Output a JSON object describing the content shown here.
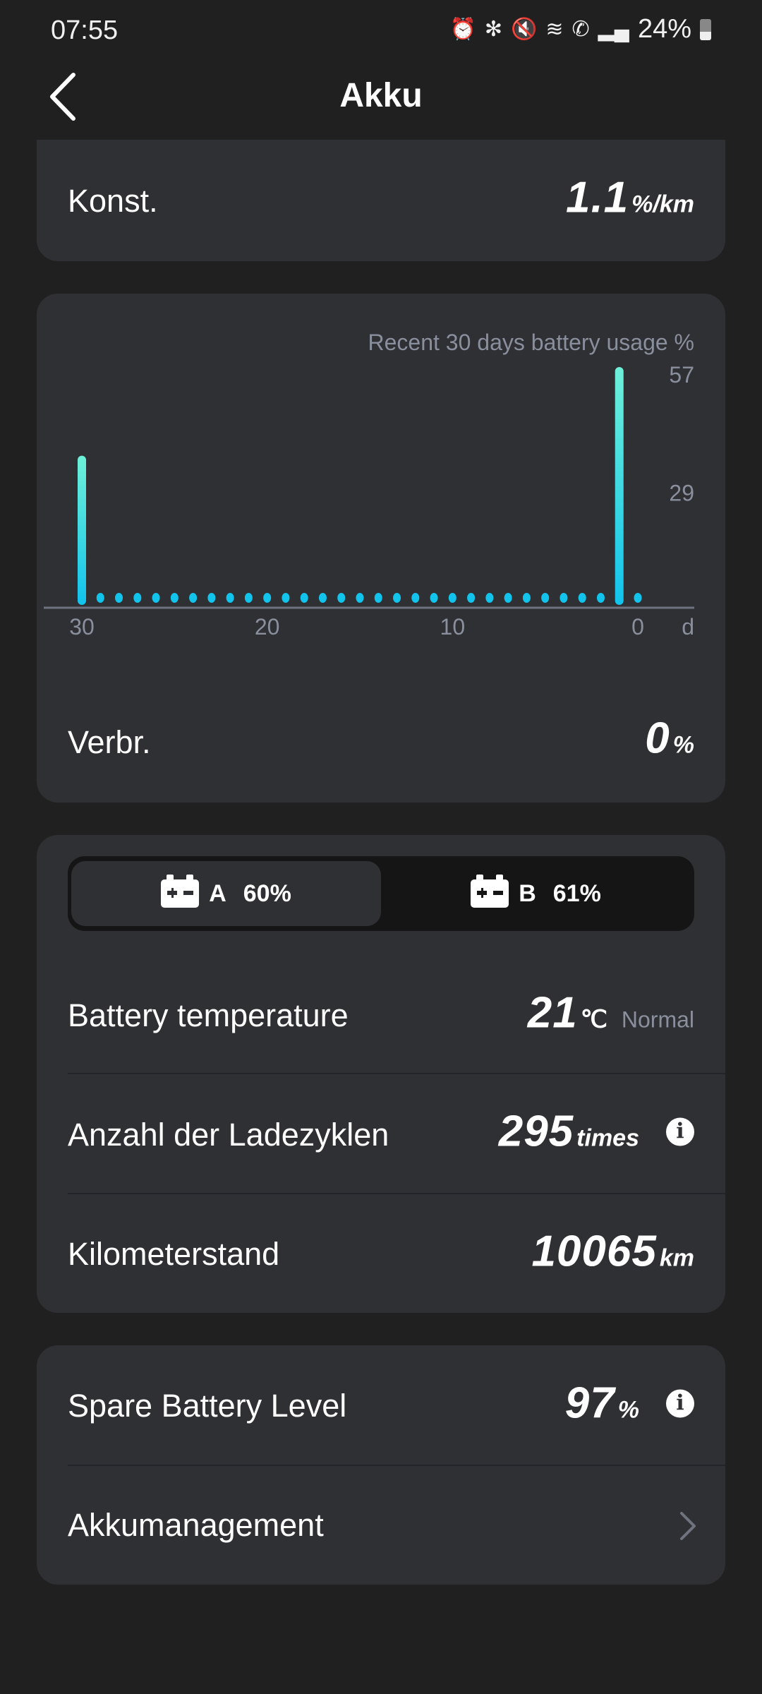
{
  "status_bar": {
    "time": "07:55",
    "battery": "24%",
    "icons": [
      "alarm-icon",
      "bluetooth-icon",
      "mute-icon",
      "wifi-icon",
      "wifi-calling-icon",
      "signal-icon",
      "battery-icon"
    ]
  },
  "header": {
    "title": "Akku",
    "back_icon": "chevron-left-icon"
  },
  "card_const": {
    "label": "Konst.",
    "value": "1.1",
    "unit": "%/km"
  },
  "chart_data": {
    "type": "bar",
    "title": "Recent 30 days battery usage %",
    "x": [
      30,
      29,
      28,
      27,
      26,
      25,
      24,
      23,
      22,
      21,
      20,
      19,
      18,
      17,
      16,
      15,
      14,
      13,
      12,
      11,
      10,
      9,
      8,
      7,
      6,
      5,
      4,
      3,
      2,
      1,
      0
    ],
    "values": [
      36,
      0,
      0,
      0,
      0,
      0,
      0,
      0,
      0,
      0,
      0,
      0,
      0,
      0,
      0,
      0,
      0,
      0,
      0,
      0,
      0,
      0,
      0,
      0,
      0,
      0,
      0,
      0,
      0,
      57,
      0
    ],
    "x_ticks": [
      "30",
      "20",
      "10",
      "0"
    ],
    "x_unit": "d",
    "y_ticks": [
      "57",
      "29"
    ],
    "ylim": [
      0,
      57
    ],
    "grid": true,
    "colors": {
      "bar_top": "#6ef0d8",
      "bar_bottom": "#12c3ec",
      "axis": "#6f7380"
    }
  },
  "card_usage": {
    "label": "Verbr.",
    "value": "0",
    "unit": "%"
  },
  "battery_tabs": [
    {
      "name": "A",
      "level": "60%",
      "selected": true
    },
    {
      "name": "B",
      "level": "61%",
      "selected": false
    }
  ],
  "battery_details": {
    "temperature": {
      "label": "Battery temperature",
      "value": "21",
      "unit": "℃",
      "status": "Normal"
    },
    "cycles": {
      "label": "Anzahl der Ladezyklen",
      "value": "295",
      "unit": "times",
      "info_icon": "i"
    },
    "odometer": {
      "label": "Kilometerstand",
      "value": "10065",
      "unit": "km"
    }
  },
  "spare": {
    "label": "Spare Battery Level",
    "value": "97",
    "unit": "%",
    "info_icon": "i"
  },
  "management": {
    "label": "Akkumanagement"
  }
}
